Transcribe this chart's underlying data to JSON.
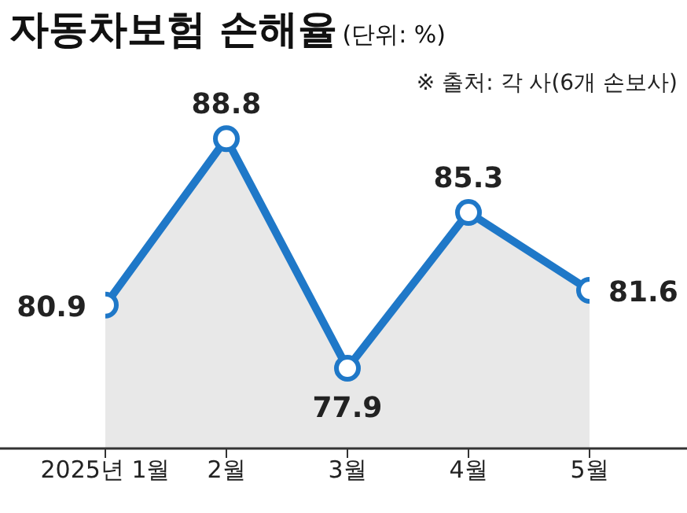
{
  "chart_data": {
    "type": "area",
    "title": "자동차보험 손해율",
    "subtitle": "(단위: %)",
    "annotations": [
      "※ 출처: 각 사(6개 손보사)"
    ],
    "categories": [
      "2025년 1월",
      "2월",
      "3월",
      "4월",
      "5월"
    ],
    "values": [
      80.9,
      88.8,
      77.9,
      85.3,
      81.6
    ],
    "color": "#1f78c8",
    "data_labels": true,
    "marker": "circle",
    "tick_labels": "x"
  }
}
